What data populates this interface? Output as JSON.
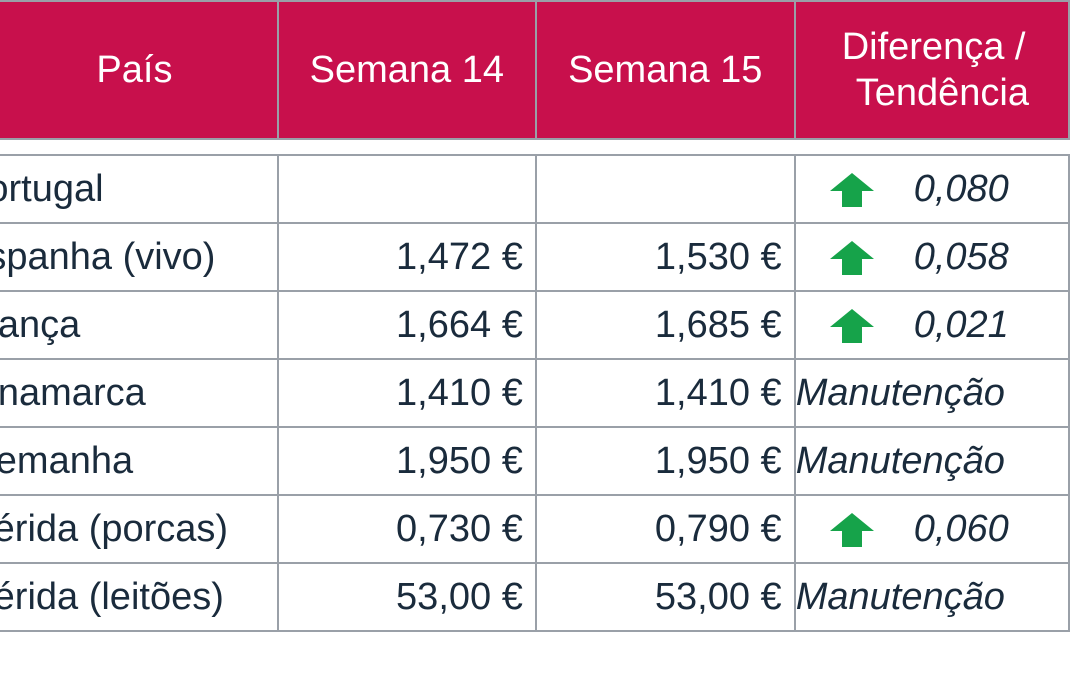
{
  "header": {
    "country": "País",
    "week14": "Semana 14",
    "week15": "Semana 15",
    "diff_line1": "Diferença /",
    "diff_line2": "Tendência"
  },
  "colors": {
    "header_bg": "#c8104c",
    "arrow_up": "#16a34a",
    "text": "#1a2b3c"
  },
  "rows": [
    {
      "country": "Portugal",
      "w14": "",
      "w15": "",
      "trend": "up-arrow-icon",
      "diff": "0,080"
    },
    {
      "country": "Espanha (vivo)",
      "w14": "1,472 €",
      "w15": "1,530 €",
      "trend": "up-arrow-icon",
      "diff": "0,058"
    },
    {
      "country": "França",
      "w14": "1,664 €",
      "w15": "1,685 €",
      "trend": "up-arrow-icon",
      "diff": "0,021"
    },
    {
      "country": "Dinamarca",
      "w14": "1,410 €",
      "w15": "1,410 €",
      "trend": "",
      "diff": "Manutenção"
    },
    {
      "country": "Alemanha",
      "w14": "1,950 €",
      "w15": "1,950 €",
      "trend": "",
      "diff": "Manutenção"
    },
    {
      "country": "Mérida (porcas)",
      "w14": "0,730 €",
      "w15": "0,790 €",
      "trend": "up-arrow-icon",
      "diff": "0,060"
    },
    {
      "country": "Mérida (leitões)",
      "w14": "53,00 €",
      "w15": "53,00 €",
      "trend": "",
      "diff": "Manutenção"
    }
  ]
}
